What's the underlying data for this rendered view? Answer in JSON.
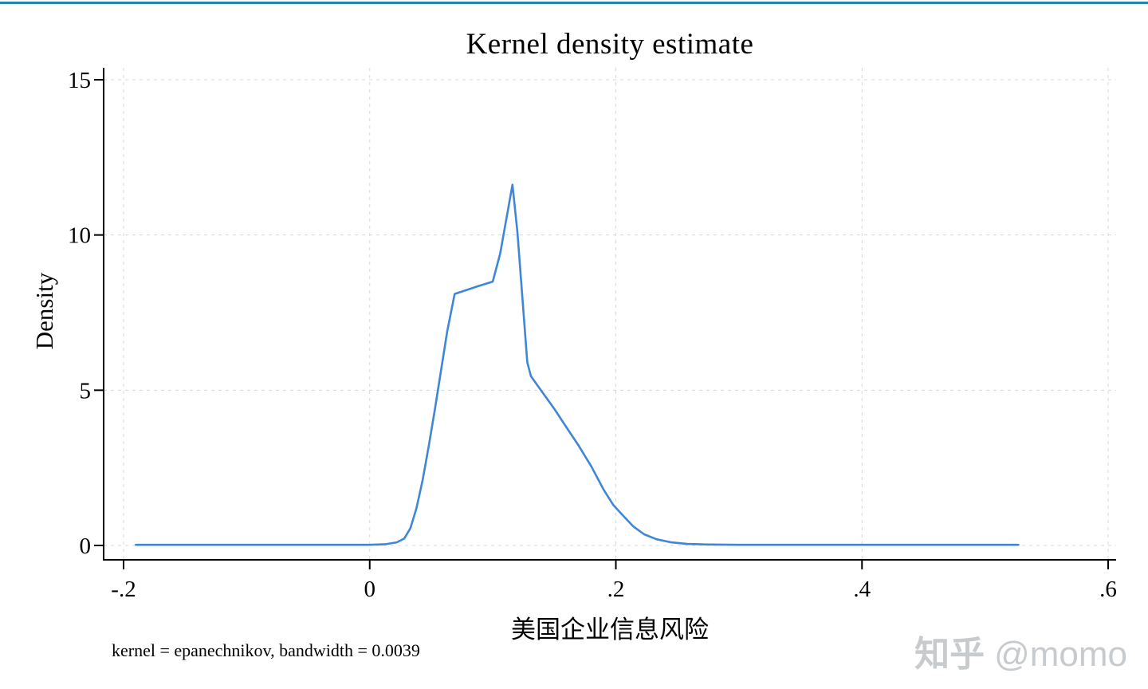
{
  "colors": {
    "accent_bar": "#2187a5",
    "curve": "#3f87d6",
    "grid": "#d8d8d8",
    "axis": "#000000",
    "watermark": "#c7cbce"
  },
  "watermark": {
    "brand": "知乎",
    "handle": "@momo"
  },
  "chart_data": {
    "type": "line",
    "title": "Kernel density estimate",
    "xlabel": "美国企业信息风险",
    "ylabel": "Density",
    "note": "kernel = epanechnikov, bandwidth = 0.0039",
    "kernel": "epanechnikov",
    "bandwidth": 0.0039,
    "grid": "dashed",
    "legend": "none",
    "x_ticks": [
      -0.2,
      0,
      0.2,
      0.4,
      0.6
    ],
    "x_tick_labels": [
      "-.2",
      "0",
      ".2",
      ".4",
      ".6"
    ],
    "y_ticks": [
      0,
      5,
      10,
      15
    ],
    "y_tick_labels": [
      "0",
      "5",
      "10",
      "15"
    ],
    "xlim": [
      -0.216,
      0.606
    ],
    "ylim": [
      -0.45,
      15.4
    ],
    "series": [
      {
        "name": "kdensity",
        "color": "#3f87d6",
        "points": [
          [
            -0.19,
            0.02
          ],
          [
            -0.12,
            0.02
          ],
          [
            -0.05,
            0.02
          ],
          [
            0.0,
            0.02
          ],
          [
            0.013,
            0.04
          ],
          [
            0.022,
            0.1
          ],
          [
            0.028,
            0.22
          ],
          [
            0.033,
            0.55
          ],
          [
            0.038,
            1.2
          ],
          [
            0.043,
            2.1
          ],
          [
            0.048,
            3.2
          ],
          [
            0.053,
            4.4
          ],
          [
            0.058,
            5.65
          ],
          [
            0.063,
            6.9
          ],
          [
            0.069,
            8.1
          ],
          [
            0.078,
            8.22
          ],
          [
            0.088,
            8.35
          ],
          [
            0.1,
            8.5
          ],
          [
            0.106,
            9.4
          ],
          [
            0.116,
            11.62
          ],
          [
            0.12,
            10.1
          ],
          [
            0.124,
            8.0
          ],
          [
            0.128,
            5.9
          ],
          [
            0.131,
            5.45
          ],
          [
            0.14,
            4.95
          ],
          [
            0.15,
            4.4
          ],
          [
            0.16,
            3.8
          ],
          [
            0.17,
            3.2
          ],
          [
            0.18,
            2.55
          ],
          [
            0.19,
            1.8
          ],
          [
            0.198,
            1.3
          ],
          [
            0.205,
            1.0
          ],
          [
            0.214,
            0.62
          ],
          [
            0.223,
            0.36
          ],
          [
            0.233,
            0.2
          ],
          [
            0.245,
            0.1
          ],
          [
            0.258,
            0.05
          ],
          [
            0.275,
            0.03
          ],
          [
            0.3,
            0.02
          ],
          [
            0.36,
            0.02
          ],
          [
            0.44,
            0.02
          ],
          [
            0.527,
            0.02
          ]
        ]
      }
    ]
  }
}
